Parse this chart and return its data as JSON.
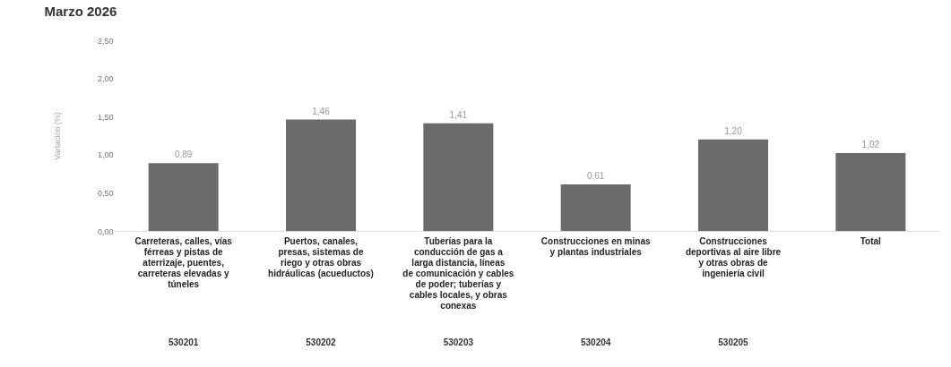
{
  "chart_data": {
    "type": "bar",
    "title": "Marzo 2026",
    "ylabel": "Variación (%)",
    "categories": [
      "Carreteras, calles, vías férreas y pistas de aterrizaje, puentes, carreteras elevadas y túneles",
      "Puertos, canales, presas, sistemas de riego y otras obras hidráulicas (acueductos)",
      "Tuberías para la conducción de gas a larga distancia, líneas de comunicación y cables de poder; tuberías y cables locales, y obras conexas",
      "Construcciones  en minas y plantas industriales",
      "Construcciones deportivas al aire libre y otras obras de ingeniería civil",
      "Total"
    ],
    "values": [
      0.89,
      1.46,
      1.41,
      0.61,
      1.2,
      1.02
    ],
    "value_labels": [
      "0,89",
      "1,46",
      "1,41",
      "0,61",
      "1,20",
      "1,02"
    ],
    "color": "#6b6b6b",
    "ylim": [
      0,
      2.5
    ],
    "yticks": [
      {
        "value": 0,
        "label": "0,00"
      },
      {
        "value": 0.5,
        "label": "0,50"
      },
      {
        "value": 1,
        "label": "1,00"
      },
      {
        "value": 1.5,
        "label": "1,50"
      },
      {
        "value": 2,
        "label": "2,00"
      },
      {
        "value": 2.5,
        "label": "2,50"
      }
    ],
    "annotations": [
      "530201",
      "530202",
      "530203",
      "530204",
      "530205"
    ],
    "grid": false
  }
}
